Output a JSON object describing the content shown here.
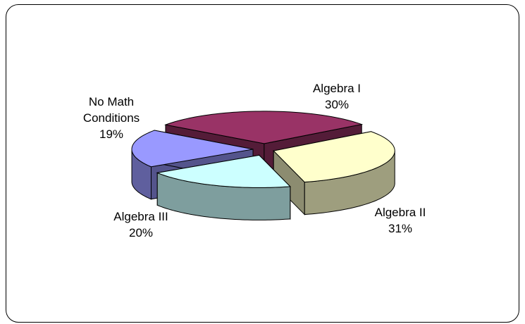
{
  "chart_data": {
    "type": "pie",
    "style": "3d-exploded",
    "slices": [
      {
        "label": [
          "Algebra I"
        ],
        "percent_label": "30%",
        "value": 30,
        "color": "#993366"
      },
      {
        "label": [
          "Algebra II"
        ],
        "percent_label": "31%",
        "value": 31,
        "color": "#FFFFCC"
      },
      {
        "label": [
          "Algebra III"
        ],
        "percent_label": "20%",
        "value": 20,
        "color": "#CCFFFF"
      },
      {
        "label": [
          "No Math",
          "Conditions"
        ],
        "percent_label": "19%",
        "value": 19,
        "color": "#9999FF"
      }
    ],
    "legend": "none",
    "data_labels": "category and percentage"
  }
}
